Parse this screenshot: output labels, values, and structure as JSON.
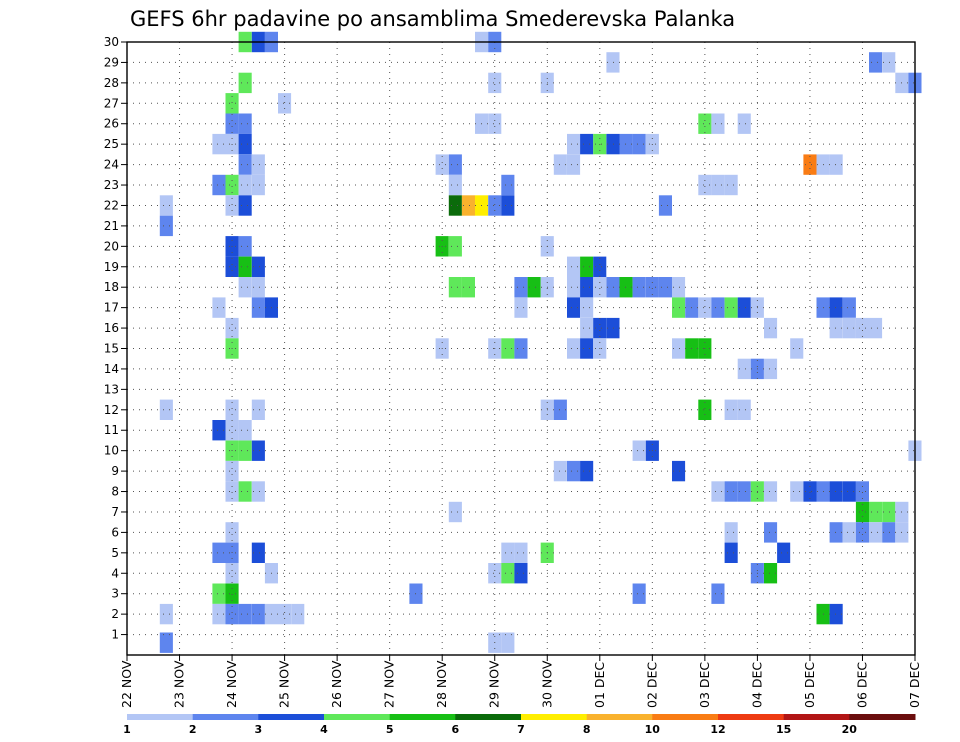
{
  "chart_data": {
    "type": "heatmap",
    "title": "GEFS 6hr padavine po ansamblima Smederevska Palanka",
    "x_tick_labels": [
      "22 NOV",
      "23 NOV",
      "24 NOV",
      "25 NOV",
      "26 NOV",
      "27 NOV",
      "28 NOV",
      "29 NOV",
      "30 NOV",
      "01 DEC",
      "02 DEC",
      "03 DEC",
      "04 DEC",
      "05 DEC",
      "06 DEC",
      "07 DEC"
    ],
    "x_range_steps": [
      0,
      60
    ],
    "steps_per_day": 4,
    "y_tick_labels": [
      1,
      2,
      3,
      4,
      5,
      6,
      7,
      8,
      9,
      10,
      11,
      12,
      13,
      14,
      15,
      16,
      17,
      18,
      19,
      20,
      21,
      22,
      23,
      24,
      25,
      26,
      27,
      28,
      29,
      30
    ],
    "y_range": [
      0,
      30
    ],
    "grid": true,
    "colorbar": {
      "labels": [
        "1",
        "2",
        "3",
        "4",
        "5",
        "6",
        "7",
        "8",
        "10",
        "12",
        "15",
        "20"
      ],
      "colors": [
        "#b3c6f5",
        "#5e85ee",
        "#1c4ed8",
        "#5fe85a",
        "#17bf15",
        "#0b6b0b",
        "#ffee00",
        "#f9b22d",
        "#f97c14",
        "#ee3b12",
        "#b21515",
        "#6b0e0e"
      ]
    },
    "cells": [
      [
        9,
        30,
        4
      ],
      [
        10,
        30,
        3
      ],
      [
        11,
        30,
        2
      ],
      [
        27,
        30,
        1
      ],
      [
        28,
        30,
        2
      ],
      [
        37,
        29,
        1
      ],
      [
        57,
        29,
        2
      ],
      [
        58,
        29,
        1
      ],
      [
        9,
        28,
        4
      ],
      [
        28,
        28,
        1
      ],
      [
        32,
        28,
        1
      ],
      [
        59,
        28,
        1
      ],
      [
        60,
        28,
        2
      ],
      [
        8,
        27,
        4
      ],
      [
        12,
        27,
        1
      ],
      [
        8,
        26,
        2
      ],
      [
        9,
        26,
        2
      ],
      [
        27,
        26,
        1
      ],
      [
        28,
        26,
        1
      ],
      [
        44,
        26,
        4
      ],
      [
        45,
        26,
        1
      ],
      [
        47,
        26,
        1
      ],
      [
        7,
        25,
        1
      ],
      [
        8,
        25,
        1
      ],
      [
        9,
        25,
        3
      ],
      [
        34,
        25,
        1
      ],
      [
        35,
        25,
        3
      ],
      [
        36,
        25,
        4
      ],
      [
        37,
        25,
        3
      ],
      [
        38,
        25,
        2
      ],
      [
        39,
        25,
        2
      ],
      [
        40,
        25,
        1
      ],
      [
        9,
        24,
        2
      ],
      [
        10,
        24,
        1
      ],
      [
        24,
        24,
        1
      ],
      [
        25,
        24,
        2
      ],
      [
        33,
        24,
        1
      ],
      [
        34,
        24,
        1
      ],
      [
        52,
        24,
        9
      ],
      [
        53,
        24,
        1
      ],
      [
        54,
        24,
        1
      ],
      [
        7,
        23,
        2
      ],
      [
        8,
        23,
        4
      ],
      [
        9,
        23,
        1
      ],
      [
        10,
        23,
        1
      ],
      [
        25,
        23,
        1
      ],
      [
        29,
        23,
        2
      ],
      [
        44,
        23,
        1
      ],
      [
        45,
        23,
        1
      ],
      [
        46,
        23,
        1
      ],
      [
        3,
        22,
        1
      ],
      [
        8,
        22,
        1
      ],
      [
        9,
        22,
        3
      ],
      [
        25,
        22,
        6
      ],
      [
        26,
        22,
        8
      ],
      [
        27,
        22,
        7
      ],
      [
        28,
        22,
        2
      ],
      [
        29,
        22,
        3
      ],
      [
        41,
        22,
        2
      ],
      [
        3,
        21,
        2
      ],
      [
        8,
        20,
        3
      ],
      [
        9,
        20,
        2
      ],
      [
        24,
        20,
        5
      ],
      [
        25,
        20,
        4
      ],
      [
        32,
        20,
        1
      ],
      [
        8,
        19,
        3
      ],
      [
        9,
        19,
        5
      ],
      [
        10,
        19,
        3
      ],
      [
        34,
        19,
        1
      ],
      [
        35,
        19,
        5
      ],
      [
        36,
        19,
        3
      ],
      [
        9,
        18,
        1
      ],
      [
        10,
        18,
        1
      ],
      [
        25,
        18,
        4
      ],
      [
        26,
        18,
        4
      ],
      [
        30,
        18,
        2
      ],
      [
        31,
        18,
        5
      ],
      [
        32,
        18,
        1
      ],
      [
        34,
        18,
        1
      ],
      [
        35,
        18,
        3
      ],
      [
        36,
        18,
        1
      ],
      [
        37,
        18,
        2
      ],
      [
        38,
        18,
        5
      ],
      [
        39,
        18,
        2
      ],
      [
        40,
        18,
        2
      ],
      [
        41,
        18,
        2
      ],
      [
        42,
        18,
        1
      ],
      [
        7,
        17,
        1
      ],
      [
        10,
        17,
        2
      ],
      [
        11,
        17,
        3
      ],
      [
        30,
        17,
        1
      ],
      [
        34,
        17,
        3
      ],
      [
        35,
        17,
        1
      ],
      [
        42,
        17,
        4
      ],
      [
        43,
        17,
        2
      ],
      [
        44,
        17,
        1
      ],
      [
        45,
        17,
        2
      ],
      [
        46,
        17,
        4
      ],
      [
        47,
        17,
        3
      ],
      [
        48,
        17,
        1
      ],
      [
        53,
        17,
        2
      ],
      [
        54,
        17,
        3
      ],
      [
        55,
        17,
        2
      ],
      [
        8,
        16,
        1
      ],
      [
        35,
        16,
        1
      ],
      [
        36,
        16,
        3
      ],
      [
        37,
        16,
        3
      ],
      [
        49,
        16,
        1
      ],
      [
        54,
        16,
        1
      ],
      [
        55,
        16,
        1
      ],
      [
        56,
        16,
        1
      ],
      [
        57,
        16,
        1
      ],
      [
        8,
        15,
        4
      ],
      [
        24,
        15,
        1
      ],
      [
        28,
        15,
        1
      ],
      [
        29,
        15,
        4
      ],
      [
        30,
        15,
        2
      ],
      [
        34,
        15,
        1
      ],
      [
        35,
        15,
        3
      ],
      [
        36,
        15,
        1
      ],
      [
        42,
        15,
        1
      ],
      [
        43,
        15,
        5
      ],
      [
        44,
        15,
        5
      ],
      [
        51,
        15,
        1
      ],
      [
        47,
        14,
        1
      ],
      [
        48,
        14,
        2
      ],
      [
        49,
        14,
        1
      ],
      [
        3,
        12,
        1
      ],
      [
        8,
        12,
        1
      ],
      [
        10,
        12,
        1
      ],
      [
        32,
        12,
        1
      ],
      [
        33,
        12,
        2
      ],
      [
        44,
        12,
        5
      ],
      [
        46,
        12,
        1
      ],
      [
        47,
        12,
        1
      ],
      [
        8,
        11,
        1
      ],
      [
        7,
        11,
        3
      ],
      [
        9,
        11,
        1
      ],
      [
        8,
        10,
        4
      ],
      [
        9,
        10,
        4
      ],
      [
        10,
        10,
        3
      ],
      [
        39,
        10,
        1
      ],
      [
        40,
        10,
        3
      ],
      [
        60,
        10,
        1
      ],
      [
        8,
        9,
        1
      ],
      [
        33,
        9,
        1
      ],
      [
        34,
        9,
        2
      ],
      [
        35,
        9,
        3
      ],
      [
        42,
        9,
        3
      ],
      [
        8,
        8,
        1
      ],
      [
        9,
        8,
        4
      ],
      [
        10,
        8,
        1
      ],
      [
        45,
        8,
        1
      ],
      [
        46,
        8,
        2
      ],
      [
        47,
        8,
        2
      ],
      [
        48,
        8,
        4
      ],
      [
        49,
        8,
        1
      ],
      [
        51,
        8,
        1
      ],
      [
        52,
        8,
        3
      ],
      [
        53,
        8,
        2
      ],
      [
        54,
        8,
        3
      ],
      [
        55,
        8,
        3
      ],
      [
        56,
        8,
        2
      ],
      [
        25,
        7,
        1
      ],
      [
        56,
        7,
        5
      ],
      [
        57,
        7,
        4
      ],
      [
        58,
        7,
        4
      ],
      [
        59,
        7,
        1
      ],
      [
        8,
        6,
        1
      ],
      [
        46,
        6,
        1
      ],
      [
        49,
        6,
        2
      ],
      [
        54,
        6,
        2
      ],
      [
        55,
        6,
        1
      ],
      [
        56,
        6,
        2
      ],
      [
        57,
        6,
        1
      ],
      [
        58,
        6,
        2
      ],
      [
        59,
        6,
        1
      ],
      [
        7,
        5,
        2
      ],
      [
        8,
        5,
        2
      ],
      [
        10,
        5,
        3
      ],
      [
        29,
        5,
        1
      ],
      [
        30,
        5,
        1
      ],
      [
        32,
        5,
        4
      ],
      [
        46,
        5,
        3
      ],
      [
        50,
        5,
        3
      ],
      [
        8,
        4,
        1
      ],
      [
        11,
        4,
        1
      ],
      [
        28,
        4,
        1
      ],
      [
        29,
        4,
        4
      ],
      [
        30,
        4,
        3
      ],
      [
        48,
        4,
        2
      ],
      [
        49,
        4,
        5
      ],
      [
        7,
        3,
        4
      ],
      [
        8,
        3,
        5
      ],
      [
        22,
        3,
        2
      ],
      [
        39,
        3,
        2
      ],
      [
        45,
        3,
        2
      ],
      [
        3,
        2,
        1
      ],
      [
        7,
        2,
        1
      ],
      [
        8,
        2,
        2
      ],
      [
        9,
        2,
        2
      ],
      [
        10,
        2,
        2
      ],
      [
        11,
        2,
        1
      ],
      [
        12,
        2,
        1
      ],
      [
        13,
        2,
        1
      ],
      [
        53,
        2,
        5
      ],
      [
        54,
        2,
        3
      ],
      [
        3,
        0.6,
        2
      ],
      [
        28,
        0.6,
        1
      ],
      [
        29,
        0.6,
        1
      ]
    ]
  }
}
